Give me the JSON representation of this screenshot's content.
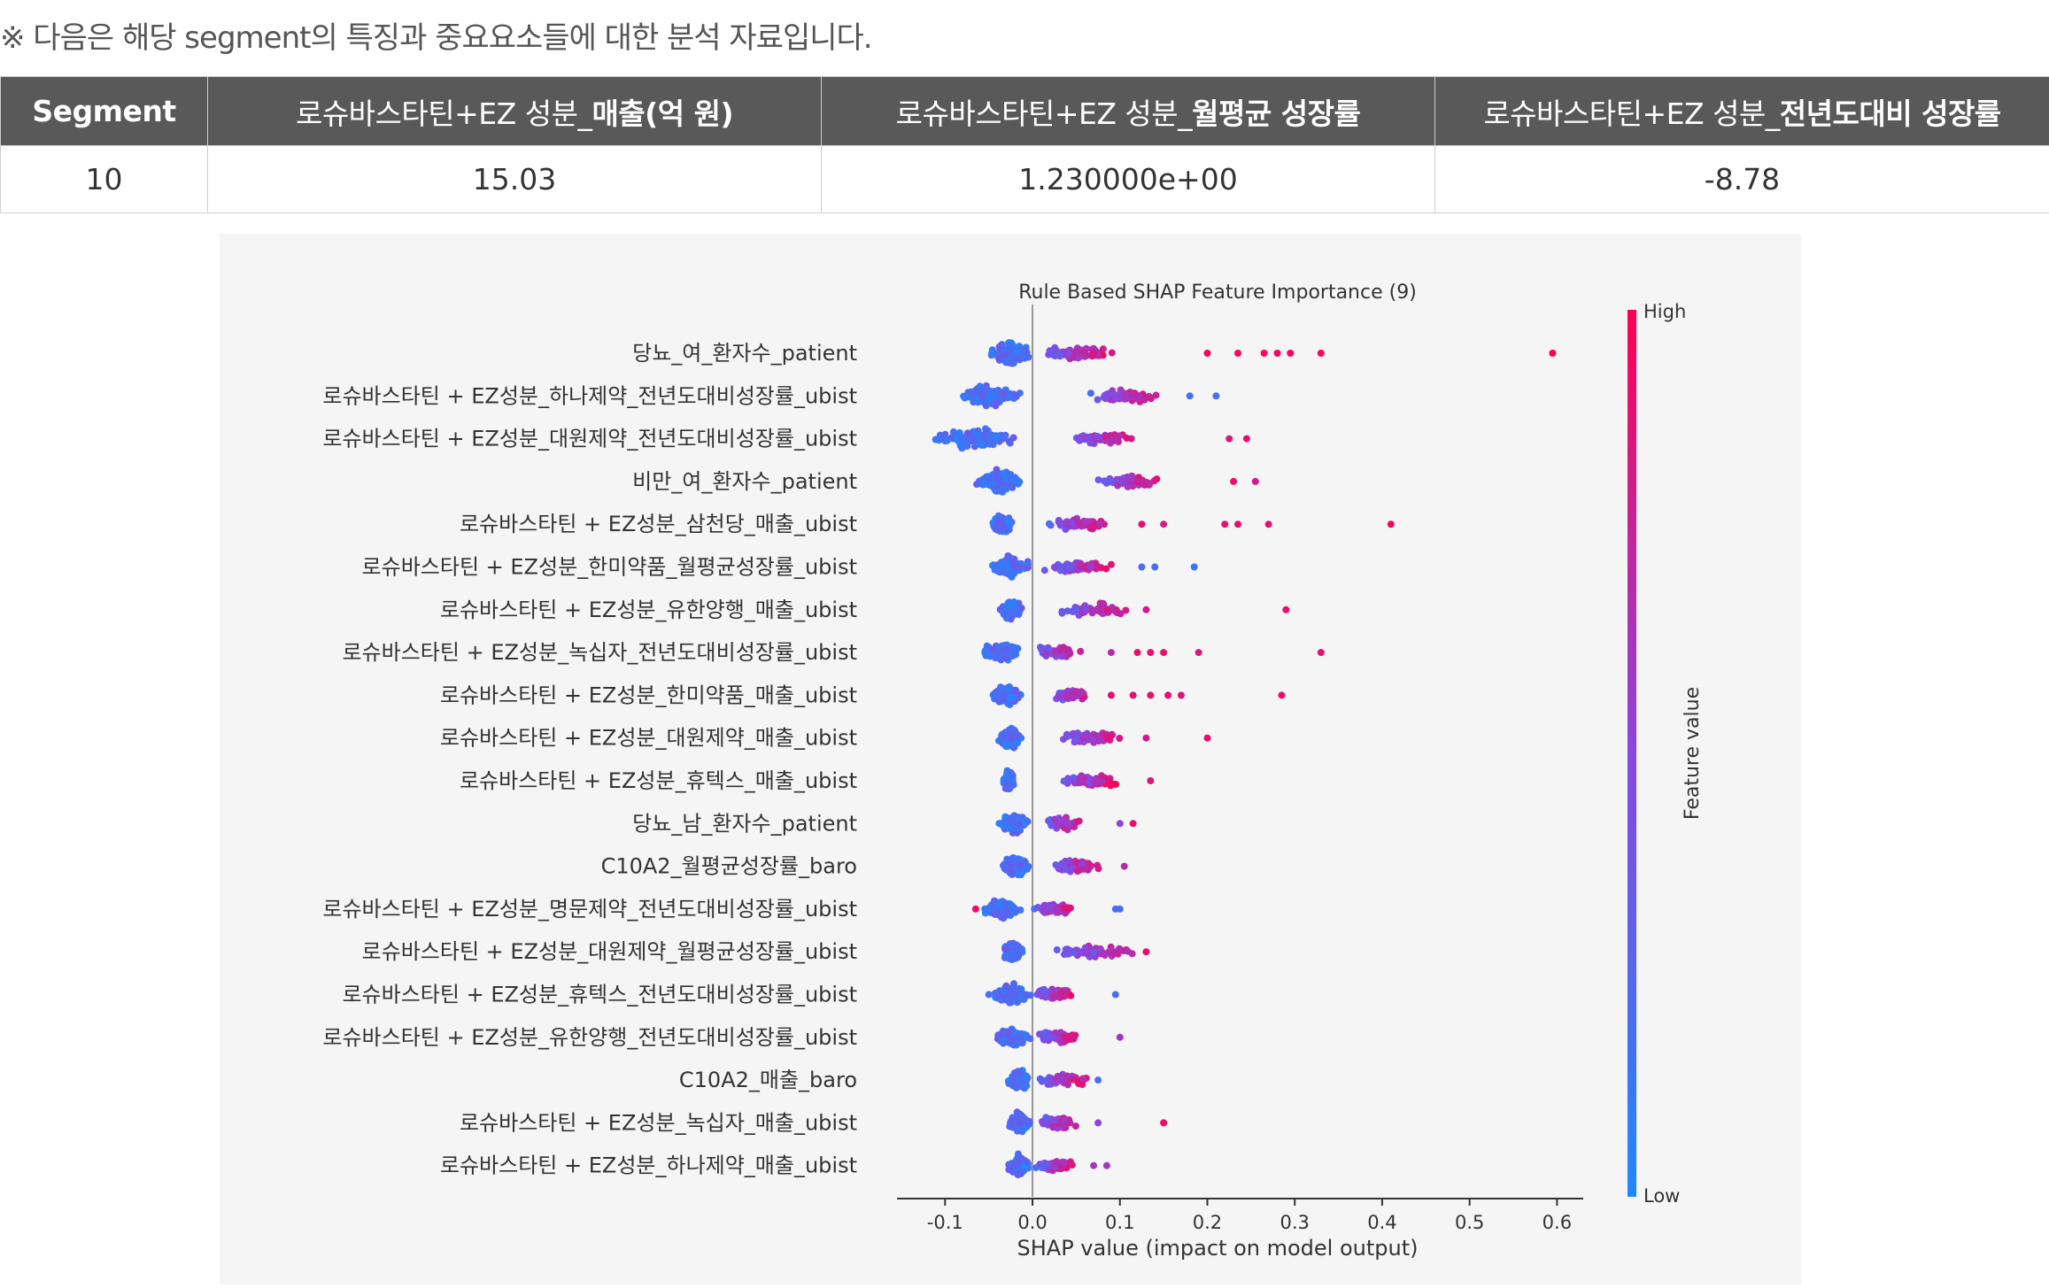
{
  "note": "※ 다음은 해당 segment의 특징과 중요요소들에 대한 분석 자료입니다.",
  "table": {
    "headers": [
      {
        "prefix": "",
        "bold": "Segment"
      },
      {
        "prefix": "로슈바스타틴+EZ 성분_",
        "bold": "매출(억 원)"
      },
      {
        "prefix": "로슈바스타틴+EZ 성분_",
        "bold": "월평균 성장률"
      },
      {
        "prefix": "로슈바스타틴+EZ 성분_",
        "bold": "전년도대비 성장률"
      }
    ],
    "row": [
      "10",
      "15.03",
      "1.230000e+00",
      "-8.78"
    ]
  },
  "chart_data": {
    "type": "scatter",
    "title": "Rule Based SHAP Feature Importance (9)",
    "xlabel": "SHAP value (impact on model output)",
    "xlim": [
      -0.155,
      0.63
    ],
    "xticks": [
      -0.1,
      0.0,
      0.1,
      0.2,
      0.3,
      0.4,
      0.5,
      0.6
    ],
    "xtick_labels": [
      "-0.1",
      "0.0",
      "0.1",
      "0.2",
      "0.3",
      "0.4",
      "0.5",
      "0.6"
    ],
    "colorbar": {
      "label": "Feature value",
      "high": "High",
      "low": "Low",
      "low_color": "#1e88ff",
      "high_color": "#ff0052"
    },
    "features": [
      {
        "name": "당뇨_여_환자수_patient",
        "core": [
          -0.05,
          0.0
        ],
        "spread": [
          0.0,
          0.1
        ],
        "outliers": [
          [
            0.2,
            0.95
          ],
          [
            0.235,
            0.95
          ],
          [
            0.265,
            0.95
          ],
          [
            0.28,
            0.95
          ],
          [
            0.295,
            0.95
          ],
          [
            0.33,
            0.95
          ],
          [
            0.595,
            1.0
          ]
        ]
      },
      {
        "name": "로슈바스타틴 + EZ성분_하나제약_전년도대비성장률_ubist",
        "core": [
          -0.09,
          -0.01
        ],
        "spread": [
          0.06,
          0.15
        ],
        "outliers": [
          [
            0.18,
            0.2
          ],
          [
            0.21,
            0.2
          ]
        ]
      },
      {
        "name": "로슈바스타틴 + EZ성분_대원제약_전년도대비성장률_ubist",
        "core": [
          -0.12,
          -0.01
        ],
        "spread": [
          0.04,
          0.12
        ],
        "outliers": [
          [
            0.225,
            0.85
          ],
          [
            0.245,
            0.9
          ]
        ]
      },
      {
        "name": "비만_여_환자수_patient",
        "core": [
          -0.07,
          -0.01
        ],
        "spread": [
          0.07,
          0.15
        ],
        "outliers": [
          [
            0.23,
            0.9
          ],
          [
            0.255,
            0.8
          ]
        ]
      },
      {
        "name": "로슈바스타틴 + EZ성분_삼천당_매출_ubist",
        "core": [
          -0.05,
          -0.02
        ],
        "spread": [
          0.01,
          0.1
        ],
        "outliers": [
          [
            0.125,
            0.9
          ],
          [
            0.15,
            0.8
          ],
          [
            0.22,
            0.9
          ],
          [
            0.235,
            0.9
          ],
          [
            0.27,
            0.9
          ],
          [
            0.41,
            0.95
          ]
        ]
      },
      {
        "name": "로슈바스타틴 + EZ성분_한미약품_월평균성장률_ubist",
        "core": [
          -0.05,
          0.0
        ],
        "spread": [
          0.01,
          0.1
        ],
        "outliers": [
          [
            0.125,
            0.2
          ],
          [
            0.14,
            0.2
          ],
          [
            0.185,
            0.15
          ]
        ]
      },
      {
        "name": "로슈바스타틴 + EZ성분_유한양행_매출_ubist",
        "core": [
          -0.04,
          -0.01
        ],
        "spread": [
          0.02,
          0.12
        ],
        "outliers": [
          [
            0.13,
            0.8
          ],
          [
            0.29,
            0.9
          ]
        ]
      },
      {
        "name": "로슈바스타틴 + EZ성분_녹십자_전년도대비성장률_ubist",
        "core": [
          -0.06,
          -0.01
        ],
        "spread": [
          0.0,
          0.06
        ],
        "outliers": [
          [
            0.09,
            0.7
          ],
          [
            0.12,
            0.9
          ],
          [
            0.135,
            0.9
          ],
          [
            0.15,
            0.9
          ],
          [
            0.19,
            0.85
          ],
          [
            0.33,
            0.9
          ]
        ]
      },
      {
        "name": "로슈바스타틴 + EZ성분_한미약품_매출_ubist",
        "core": [
          -0.05,
          -0.01
        ],
        "spread": [
          0.02,
          0.07
        ],
        "outliers": [
          [
            0.09,
            0.9
          ],
          [
            0.115,
            0.9
          ],
          [
            0.135,
            0.9
          ],
          [
            0.155,
            0.9
          ],
          [
            0.17,
            0.85
          ],
          [
            0.285,
            0.9
          ]
        ]
      },
      {
        "name": "로슈바스타틴 + EZ성분_대원제약_매출_ubist",
        "core": [
          -0.04,
          -0.01
        ],
        "spread": [
          0.02,
          0.11
        ],
        "outliers": [
          [
            0.13,
            0.8
          ],
          [
            0.2,
            0.9
          ]
        ]
      },
      {
        "name": "로슈바스타틴 + EZ성분_휴텍스_매출_ubist",
        "core": [
          -0.035,
          -0.02
        ],
        "spread": [
          0.03,
          0.1
        ],
        "outliers": [
          [
            0.135,
            0.85
          ]
        ]
      },
      {
        "name": "당뇨_남_환자수_patient",
        "core": [
          -0.04,
          0.0
        ],
        "spread": [
          0.01,
          0.06
        ],
        "outliers": [
          [
            0.1,
            0.5
          ],
          [
            0.115,
            0.9
          ]
        ]
      },
      {
        "name": "C10A2_월평균성장률_baro",
        "core": [
          -0.04,
          0.0
        ],
        "spread": [
          0.02,
          0.08
        ],
        "outliers": [
          [
            0.105,
            0.7
          ]
        ]
      },
      {
        "name": "로슈바스타틴 + EZ성분_명문제약_전년도대비성장률_ubist",
        "core": [
          -0.06,
          -0.01
        ],
        "spread": [
          0.0,
          0.05
        ],
        "outliers": [
          [
            -0.065,
            0.9
          ],
          [
            0.095,
            0.2
          ],
          [
            0.1,
            0.2
          ]
        ]
      },
      {
        "name": "로슈바스타틴 + EZ성분_대원제약_월평균성장률_ubist",
        "core": [
          -0.035,
          -0.01
        ],
        "spread": [
          0.02,
          0.13
        ],
        "outliers": [
          [
            0.07,
            0.3
          ],
          [
            0.13,
            0.9
          ]
        ]
      },
      {
        "name": "로슈바스타틴 + EZ성분_휴텍스_전년도대비성장률_ubist",
        "core": [
          -0.05,
          0.0
        ],
        "spread": [
          0.0,
          0.05
        ],
        "outliers": [
          [
            -0.05,
            0.2
          ],
          [
            0.095,
            0.2
          ]
        ]
      },
      {
        "name": "로슈바스타틴 + EZ성분_유한양행_전년도대비성장률_ubist",
        "core": [
          -0.045,
          0.0
        ],
        "spread": [
          0.0,
          0.06
        ],
        "outliers": [
          [
            0.1,
            0.6
          ]
        ]
      },
      {
        "name": "C10A2_매출_baro",
        "core": [
          -0.03,
          0.0
        ],
        "spread": [
          0.0,
          0.07
        ],
        "outliers": [
          [
            0.075,
            0.2
          ]
        ]
      },
      {
        "name": "로슈바스타틴 + EZ성분_녹십자_매출_ubist",
        "core": [
          -0.03,
          0.0
        ],
        "spread": [
          0.0,
          0.055
        ],
        "outliers": [
          [
            0.075,
            0.5
          ],
          [
            0.15,
            0.95
          ]
        ]
      },
      {
        "name": "로슈바스타틴 + EZ성분_하나제약_매출_ubist",
        "core": [
          -0.03,
          0.0
        ],
        "spread": [
          0.0,
          0.05
        ],
        "outliers": [
          [
            0.07,
            0.6
          ],
          [
            0.085,
            0.6
          ]
        ]
      }
    ]
  }
}
